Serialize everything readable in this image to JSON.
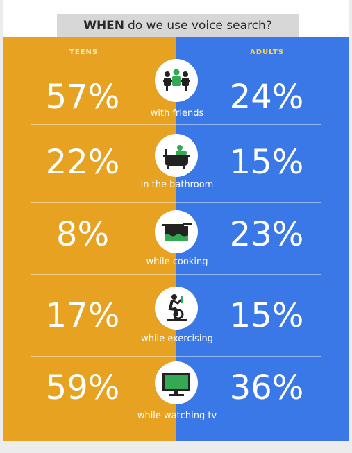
{
  "title": {
    "bold": "WHEN",
    "rest": "do we use voice search?"
  },
  "colors": {
    "teens": "#e8a222",
    "adults": "#3b78e7",
    "icon_green": "#34a853"
  },
  "chart_data": {
    "type": "table",
    "series": [
      {
        "name": "TEENS",
        "values": [
          57,
          22,
          8,
          17,
          59
        ]
      },
      {
        "name": "ADULTS",
        "values": [
          24,
          15,
          23,
          15,
          36
        ]
      }
    ],
    "categories": [
      "with friends",
      "in the bathroom",
      "while cooking",
      "while exercising",
      "while watching tv"
    ],
    "unit": "%"
  },
  "rows": [
    {
      "teens": "57%",
      "adults": "24%",
      "caption": "with friends",
      "icon": "friends-icon"
    },
    {
      "teens": "22%",
      "adults": "15%",
      "caption": "in the bathroom",
      "icon": "bathtub-icon"
    },
    {
      "teens": "8%",
      "adults": "23%",
      "caption": "while cooking",
      "icon": "cooking-pot-icon"
    },
    {
      "teens": "17%",
      "adults": "15%",
      "caption": "while exercising",
      "icon": "exercise-bike-icon"
    },
    {
      "teens": "59%",
      "adults": "36%",
      "caption": "while watching tv",
      "icon": "tv-icon"
    }
  ]
}
